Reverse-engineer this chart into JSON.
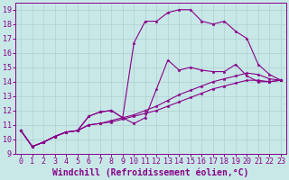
{
  "title": "",
  "xlabel": "Windchill (Refroidissement éolien,°C)",
  "ylabel": "",
  "bg_color": "#c8e8e8",
  "line_color": "#880088",
  "grid_color": "#b0d0d0",
  "xlim": [
    -0.5,
    23.5
  ],
  "ylim": [
    9,
    19.5
  ],
  "xticks": [
    0,
    1,
    2,
    3,
    4,
    5,
    6,
    7,
    8,
    9,
    10,
    11,
    12,
    13,
    14,
    15,
    16,
    17,
    18,
    19,
    20,
    21,
    22,
    23
  ],
  "yticks": [
    9,
    10,
    11,
    12,
    13,
    14,
    15,
    16,
    17,
    18,
    19
  ],
  "lines": [
    {
      "x": [
        0,
        1,
        2,
        3,
        4,
        5,
        6,
        7,
        8,
        9,
        10,
        11,
        12,
        13,
        14,
        15,
        16,
        17,
        18,
        19,
        20,
        21,
        22,
        23
      ],
      "y": [
        10.6,
        9.5,
        9.8,
        10.2,
        10.5,
        10.6,
        11.6,
        11.9,
        12.0,
        11.5,
        11.1,
        11.5,
        13.5,
        15.5,
        14.8,
        15.0,
        14.8,
        14.7,
        14.7,
        15.2,
        14.4,
        14.0,
        14.0,
        14.1
      ]
    },
    {
      "x": [
        0,
        1,
        2,
        3,
        4,
        5,
        6,
        7,
        8,
        9,
        10,
        11,
        12,
        13,
        14,
        15,
        16,
        17,
        18,
        19,
        20,
        21,
        22,
        23
      ],
      "y": [
        10.6,
        9.5,
        9.8,
        10.2,
        10.5,
        10.6,
        11.6,
        11.9,
        12.0,
        11.5,
        16.7,
        18.2,
        18.2,
        18.8,
        19.0,
        19.0,
        18.2,
        18.0,
        18.2,
        17.5,
        17.0,
        15.2,
        14.5,
        14.1
      ]
    },
    {
      "x": [
        0,
        1,
        2,
        3,
        4,
        5,
        6,
        7,
        8,
        9,
        10,
        11,
        12,
        13,
        14,
        15,
        16,
        17,
        18,
        19,
        20,
        21,
        22,
        23
      ],
      "y": [
        10.6,
        9.5,
        9.8,
        10.2,
        10.5,
        10.6,
        11.0,
        11.1,
        11.2,
        11.4,
        11.6,
        11.8,
        12.0,
        12.3,
        12.6,
        12.9,
        13.2,
        13.5,
        13.7,
        13.9,
        14.1,
        14.1,
        14.0,
        14.1
      ]
    },
    {
      "x": [
        0,
        1,
        2,
        3,
        4,
        5,
        6,
        7,
        8,
        9,
        10,
        11,
        12,
        13,
        14,
        15,
        16,
        17,
        18,
        19,
        20,
        21,
        22,
        23
      ],
      "y": [
        10.6,
        9.5,
        9.8,
        10.2,
        10.5,
        10.6,
        11.0,
        11.1,
        11.3,
        11.5,
        11.7,
        12.0,
        12.3,
        12.7,
        13.1,
        13.4,
        13.7,
        14.0,
        14.2,
        14.4,
        14.6,
        14.5,
        14.2,
        14.1
      ]
    }
  ],
  "font_size": 6,
  "tick_label_size": 6,
  "xlabel_fontsize": 7
}
